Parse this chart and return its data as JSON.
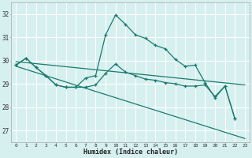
{
  "xlabel": "Humidex (Indice chaleur)",
  "bg_color": "#d6f0ef",
  "grid_color": "#ffffff",
  "line_color": "#1a7a6e",
  "xlim": [
    -0.5,
    23.5
  ],
  "ylim": [
    26.5,
    32.5
  ],
  "xticks": [
    0,
    1,
    2,
    3,
    4,
    5,
    6,
    7,
    8,
    9,
    10,
    11,
    12,
    13,
    14,
    15,
    16,
    17,
    18,
    19,
    20,
    21,
    22,
    23
  ],
  "yticks": [
    27,
    28,
    29,
    30,
    31,
    32
  ],
  "series_markers_1": {
    "x": [
      0,
      1,
      2,
      3,
      4,
      5,
      6,
      7,
      8,
      9,
      10,
      11,
      12,
      13,
      14,
      15,
      16,
      17,
      18,
      19,
      20,
      21,
      22
    ],
    "y": [
      29.8,
      30.1,
      29.7,
      29.35,
      28.95,
      28.85,
      28.85,
      29.25,
      29.35,
      31.1,
      31.95,
      31.55,
      31.1,
      30.95,
      30.65,
      30.5,
      30.05,
      29.75,
      29.8,
      29.05,
      28.4,
      28.9,
      27.5
    ]
  },
  "series_markers_2": {
    "x": [
      0,
      1,
      2,
      3,
      4,
      5,
      6,
      7,
      8,
      9,
      10,
      11,
      12,
      13,
      14,
      15,
      16,
      17,
      18,
      19,
      20,
      21,
      22
    ],
    "y": [
      29.8,
      30.1,
      29.7,
      29.35,
      28.95,
      28.85,
      28.85,
      28.85,
      28.95,
      29.45,
      29.85,
      29.5,
      29.35,
      29.2,
      29.15,
      29.05,
      29.0,
      28.9,
      28.9,
      28.95,
      28.45,
      28.9,
      27.5
    ]
  },
  "series_line_1": {
    "x": [
      0,
      23
    ],
    "y": [
      29.95,
      28.95
    ]
  },
  "series_line_2": {
    "x": [
      0,
      23
    ],
    "y": [
      29.75,
      26.65
    ]
  }
}
